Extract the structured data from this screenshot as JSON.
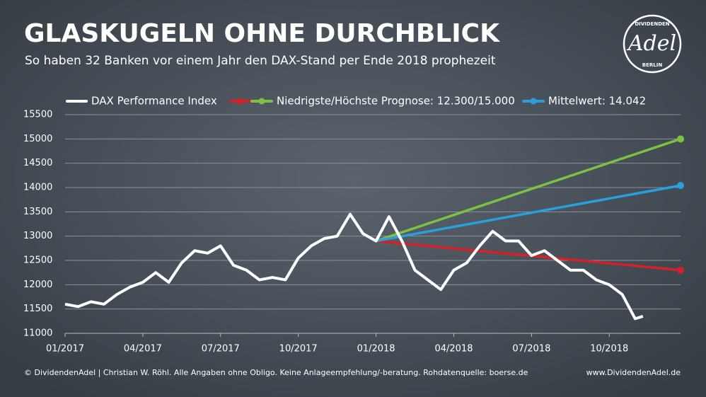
{
  "chart_data": {
    "type": "line",
    "title": "GLASKUGELN OHNE DURCHBLICK",
    "subtitle": "So haben 32 Banken vor einem Jahr den DAX-Stand per Ende 2018 prophezeit",
    "footer_left": "© DividendenAdel | Christian W. Röhl. Alle Angaben ohne Obligo. Keine Anlageempfehlung/-beratung. Rohdatenquelle: boerse.de",
    "footer_right": "www.DividendenAdel.de",
    "logo": {
      "top": "DIVIDENDEN",
      "main": "Adel",
      "bottom": "BERLIN"
    },
    "xlim": [
      0,
      23.75
    ],
    "xticks": [
      {
        "value": 0,
        "label": "01/2017"
      },
      {
        "value": 3,
        "label": "04/2017"
      },
      {
        "value": 6,
        "label": "07/2017"
      },
      {
        "value": 9,
        "label": "10/2017"
      },
      {
        "value": 12,
        "label": "01/2018"
      },
      {
        "value": 15,
        "label": "04/2018"
      },
      {
        "value": 18,
        "label": "07/2018"
      },
      {
        "value": 21,
        "label": "10/2018"
      }
    ],
    "ylim": [
      11000,
      15500
    ],
    "yticks": [
      11000,
      11500,
      12000,
      12500,
      13000,
      13500,
      14000,
      14500,
      15000,
      15500
    ],
    "grid": true,
    "series": [
      {
        "name": "DAX Performance Index",
        "color": "#ffffff",
        "x": [
          0,
          0.5,
          1,
          1.5,
          2,
          2.5,
          3,
          3.5,
          4,
          4.5,
          5,
          5.5,
          6,
          6.5,
          7,
          7.5,
          8,
          8.5,
          9,
          9.5,
          10,
          10.5,
          11,
          11.5,
          12,
          12.5,
          13,
          13.5,
          14,
          14.5,
          15,
          15.5,
          16,
          16.5,
          17,
          17.5,
          18,
          18.5,
          19,
          19.5,
          20,
          20.5,
          21,
          21.5,
          22,
          22.3
        ],
        "values": [
          11600,
          11550,
          11650,
          11600,
          11800,
          11950,
          12050,
          12250,
          12050,
          12450,
          12700,
          12650,
          12800,
          12400,
          12300,
          12100,
          12150,
          12100,
          12550,
          12800,
          12950,
          13000,
          13450,
          13050,
          12900,
          13400,
          12900,
          12300,
          12100,
          11900,
          12300,
          12450,
          12800,
          13100,
          12900,
          12900,
          12600,
          12700,
          12500,
          12300,
          12300,
          12100,
          12000,
          11800,
          11300,
          11350
        ]
      },
      {
        "color": "#d42027",
        "x": [
          12,
          23.75
        ],
        "values": [
          12900,
          12300
        ]
      },
      {
        "name": "Niedrigste/Höchste Prognose: 12.300/15.000",
        "color": "#7cc242",
        "x": [
          12,
          23.75
        ],
        "values": [
          12900,
          15000
        ]
      },
      {
        "name": "Mittelwert: 14.042",
        "color": "#2a9fdc",
        "x": [
          12,
          23.75
        ],
        "values": [
          12900,
          14042
        ]
      }
    ]
  }
}
